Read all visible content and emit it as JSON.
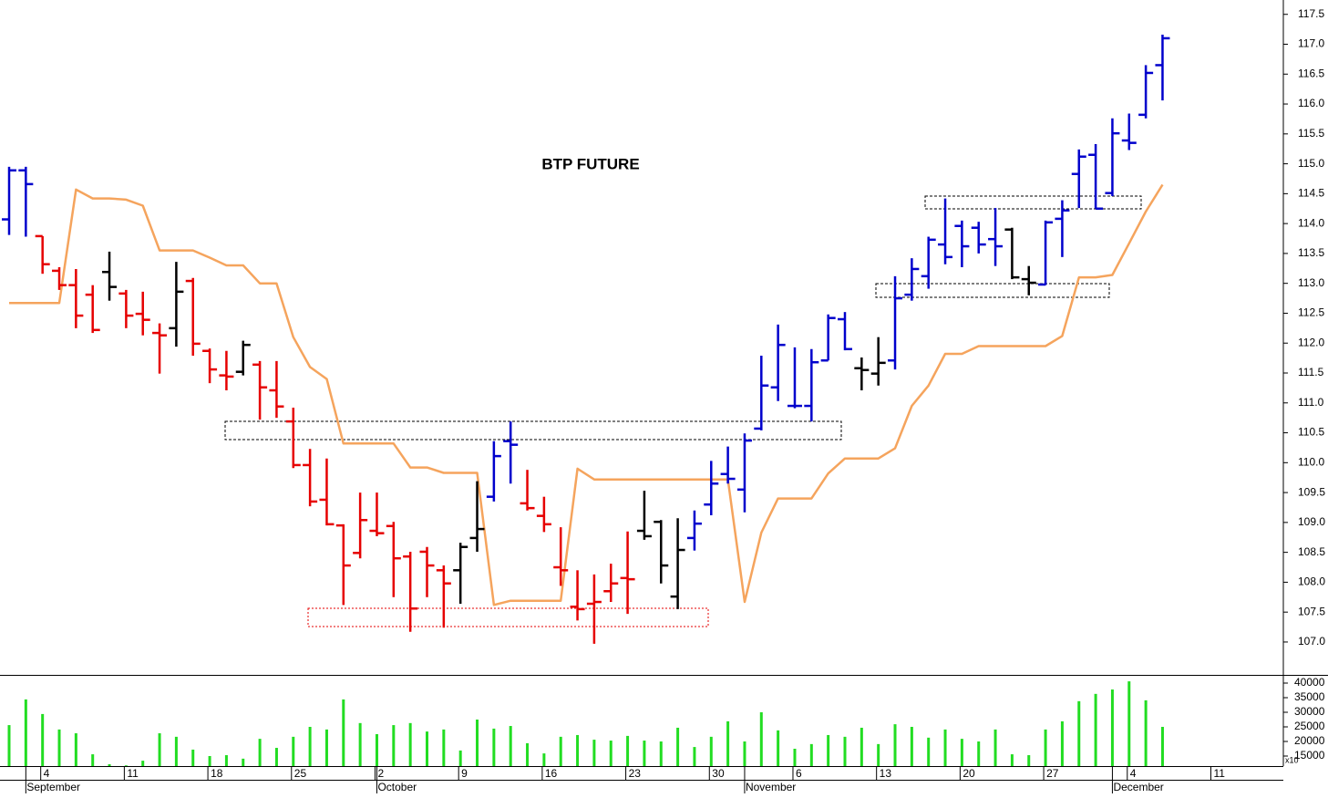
{
  "chart_data": {
    "type": "ohlc",
    "title": "BTP FUTURE",
    "categories": [
      null,
      null,
      "4",
      null,
      null,
      null,
      null,
      "11",
      null,
      null,
      null,
      null,
      "18",
      null,
      null,
      null,
      null,
      "25",
      null,
      null,
      null,
      null,
      "2",
      null,
      null,
      null,
      null,
      "9",
      null,
      null,
      null,
      null,
      "16",
      null,
      null,
      null,
      null,
      "23",
      null,
      null,
      null,
      null,
      "30",
      null,
      null,
      null,
      null,
      "6",
      null,
      null,
      null,
      null,
      "13",
      null,
      null,
      null,
      null,
      "20",
      null,
      null,
      null,
      null,
      "27",
      null,
      null,
      null,
      null,
      "4",
      null,
      null,
      null,
      null,
      "11",
      null,
      null,
      null,
      null
    ],
    "months": [
      null,
      "September",
      null,
      null,
      null,
      null,
      null,
      null,
      null,
      null,
      null,
      null,
      null,
      null,
      null,
      null,
      null,
      null,
      null,
      null,
      null,
      null,
      "October",
      null,
      null,
      null,
      null,
      null,
      null,
      null,
      null,
      null,
      null,
      null,
      null,
      null,
      null,
      null,
      null,
      null,
      null,
      null,
      null,
      null,
      "November",
      null,
      null,
      null,
      null,
      null,
      null,
      null,
      null,
      null,
      null,
      null,
      null,
      null,
      null,
      null,
      null,
      null,
      null,
      null,
      null,
      null,
      "December",
      null,
      null,
      null,
      null,
      null,
      null,
      null,
      null,
      null,
      null
    ],
    "open": [
      114.07,
      114.89,
      113.79,
      113.21,
      112.97,
      112.81,
      113.19,
      112.83,
      112.49,
      112.17,
      112.25,
      113.04,
      111.87,
      111.46,
      111.52,
      111.64,
      111.21,
      110.69,
      109.96,
      109.38,
      108.95,
      108.49,
      108.86,
      108.94,
      108.43,
      108.51,
      108.2,
      108.2,
      108.74,
      109.43,
      110.36,
      109.32,
      109.11,
      108.25,
      107.59,
      107.64,
      107.85,
      108.07,
      108.86,
      109.01,
      107.76,
      108.74,
      109.3,
      109.81,
      109.55,
      110.57,
      111.26,
      110.95,
      110.95,
      111.71,
      112.4,
      111.58,
      111.49,
      111.71,
      112.81,
      113.12,
      113.65,
      113.96,
      113.93,
      113.74,
      113.9,
      113.07,
      112.98,
      114.08,
      114.83,
      115.15,
      114.51,
      115.39,
      115.82,
      116.65,
      null,
      null,
      null,
      null,
      null,
      null,
      null
    ],
    "high": [
      114.95,
      114.95,
      113.79,
      113.27,
      113.24,
      112.97,
      113.53,
      112.89,
      112.86,
      112.33,
      113.36,
      113.09,
      111.91,
      111.87,
      112.04,
      111.7,
      111.7,
      110.92,
      110.23,
      110.07,
      108.97,
      109.5,
      109.5,
      109.01,
      108.51,
      108.59,
      108.28,
      108.66,
      109.69,
      110.36,
      110.69,
      109.88,
      109.43,
      108.92,
      108.2,
      108.13,
      108.31,
      108.85,
      109.53,
      109.04,
      109.07,
      109.2,
      110.03,
      110.27,
      110.49,
      111.79,
      112.31,
      111.93,
      111.9,
      112.48,
      112.52,
      111.76,
      112.1,
      113.12,
      113.42,
      113.78,
      114.42,
      114.05,
      114.03,
      114.26,
      113.93,
      113.29,
      114.05,
      114.39,
      115.24,
      115.33,
      115.76,
      115.84,
      116.65,
      117.16,
      null,
      null,
      null,
      null,
      null,
      null,
      null
    ],
    "low": [
      113.81,
      113.78,
      113.16,
      112.89,
      112.25,
      112.17,
      112.71,
      112.25,
      112.13,
      111.49,
      111.94,
      111.79,
      111.33,
      111.21,
      111.46,
      110.72,
      110.75,
      109.91,
      109.27,
      108.95,
      107.62,
      108.4,
      108.77,
      107.75,
      107.17,
      107.75,
      107.24,
      107.64,
      108.51,
      109.35,
      109.65,
      109.2,
      108.84,
      107.94,
      107.36,
      106.97,
      107.67,
      107.47,
      108.71,
      107.98,
      107.55,
      108.53,
      109.12,
      109.65,
      109.17,
      110.54,
      111.03,
      110.91,
      110.69,
      111.71,
      111.88,
      111.21,
      111.29,
      111.56,
      112.71,
      112.91,
      113.32,
      113.27,
      113.5,
      113.29,
      113.07,
      112.8,
      112.97,
      113.44,
      114.26,
      114.25,
      114.46,
      115.23,
      115.76,
      116.06,
      null,
      null,
      null,
      null,
      null,
      null,
      null
    ],
    "close": [
      114.89,
      114.66,
      113.32,
      112.97,
      112.46,
      112.22,
      112.94,
      112.46,
      112.39,
      112.13,
      112.86,
      111.99,
      111.56,
      111.44,
      111.97,
      111.26,
      110.94,
      109.96,
      109.35,
      108.97,
      108.28,
      109.04,
      108.82,
      108.4,
      107.56,
      108.28,
      107.98,
      108.59,
      108.89,
      110.11,
      110.3,
      109.24,
      108.97,
      108.2,
      107.55,
      107.67,
      107.98,
      108.05,
      108.77,
      108.28,
      108.54,
      108.98,
      109.65,
      109.73,
      110.37,
      111.29,
      111.97,
      110.95,
      111.68,
      112.42,
      111.9,
      111.55,
      111.67,
      112.75,
      113.24,
      113.73,
      113.44,
      113.62,
      113.65,
      113.62,
      113.1,
      113.01,
      114.02,
      114.22,
      115.12,
      114.25,
      115.51,
      115.35,
      116.52,
      117.1,
      null,
      null,
      null,
      null,
      null,
      null,
      null
    ],
    "bar_colors": [
      "#0000cc",
      "#0000cc",
      "#e60000",
      "#e60000",
      "#e60000",
      "#e60000",
      "#000000",
      "#e60000",
      "#e60000",
      "#e60000",
      "#000000",
      "#e60000",
      "#e60000",
      "#e60000",
      "#000000",
      "#e60000",
      "#e60000",
      "#e60000",
      "#e60000",
      "#e60000",
      "#e60000",
      "#e60000",
      "#e60000",
      "#e60000",
      "#e60000",
      "#e60000",
      "#e60000",
      "#000000",
      "#000000",
      "#0000cc",
      "#0000cc",
      "#e60000",
      "#e60000",
      "#e60000",
      "#e60000",
      "#e60000",
      "#e60000",
      "#e60000",
      "#000000",
      "#000000",
      "#000000",
      "#0000cc",
      "#0000cc",
      "#0000cc",
      "#0000cc",
      "#0000cc",
      "#0000cc",
      "#0000cc",
      "#0000cc",
      "#0000cc",
      "#0000cc",
      "#000000",
      "#000000",
      "#0000cc",
      "#0000cc",
      "#0000cc",
      "#0000cc",
      "#0000cc",
      "#0000cc",
      "#0000cc",
      "#000000",
      "#000000",
      "#0000cc",
      "#0000cc",
      "#0000cc",
      "#0000cc",
      "#0000cc",
      "#0000cc",
      "#0000cc",
      "#0000cc",
      null,
      null,
      null,
      null,
      null,
      null,
      null
    ],
    "line": {
      "color": "#f5a45d",
      "values": [
        112.67,
        112.67,
        112.67,
        112.67,
        114.57,
        114.42,
        114.42,
        114.4,
        114.3,
        113.55,
        113.55,
        113.55,
        113.43,
        113.3,
        113.3,
        113.0,
        113.0,
        112.1,
        111.6,
        111.4,
        110.32,
        110.32,
        110.32,
        110.32,
        109.92,
        109.92,
        109.83,
        109.83,
        109.83,
        107.62,
        107.69,
        107.69,
        107.69,
        107.69,
        109.9,
        109.72,
        109.72,
        109.72,
        109.72,
        109.72,
        109.72,
        109.72,
        109.72,
        109.72,
        107.67,
        108.83,
        109.4,
        109.4,
        109.4,
        109.82,
        110.07,
        110.07,
        110.07,
        110.24,
        110.95,
        111.29,
        111.82,
        111.82,
        111.95,
        111.95,
        111.95,
        111.95,
        111.95,
        112.12,
        113.1,
        113.1,
        113.14,
        113.67,
        114.2,
        114.65,
        null,
        null,
        null,
        null,
        null,
        null,
        null
      ]
    },
    "ylim": [
      106.45,
      117.74
    ],
    "yticks": [
      {
        "value": 107,
        "label": "107.0"
      },
      {
        "value": 107.5,
        "label": "107.5"
      },
      {
        "value": 108,
        "label": "108.0"
      },
      {
        "value": 108.5,
        "label": "108.5"
      },
      {
        "value": 109,
        "label": "109.0"
      },
      {
        "value": 109.5,
        "label": "109.5"
      },
      {
        "value": 110,
        "label": "110.0"
      },
      {
        "value": 110.5,
        "label": "110.5"
      },
      {
        "value": 111,
        "label": "111.0"
      },
      {
        "value": 111.5,
        "label": "111.5"
      },
      {
        "value": 112,
        "label": "112.0"
      },
      {
        "value": 112.5,
        "label": "112.5"
      },
      {
        "value": 113,
        "label": "113.0"
      },
      {
        "value": 113.5,
        "label": "113.5"
      },
      {
        "value": 114,
        "label": "114.0"
      },
      {
        "value": 114.5,
        "label": "114.5"
      },
      {
        "value": 115,
        "label": "115.0"
      },
      {
        "value": 115.5,
        "label": "115.5"
      },
      {
        "value": 116,
        "label": "116.0"
      },
      {
        "value": 116.5,
        "label": "116.5"
      },
      {
        "value": 117,
        "label": "117.0"
      },
      {
        "value": 117.5,
        "label": "117.5"
      }
    ],
    "volume": {
      "color": "#22dd22",
      "unit_label": "x10",
      "values": [
        25600,
        34400,
        29400,
        24100,
        22800,
        15600,
        12200,
        11800,
        13400,
        22800,
        21600,
        17200,
        15000,
        15300,
        14100,
        20900,
        17800,
        21600,
        25000,
        24100,
        34400,
        26300,
        22500,
        25600,
        26300,
        23400,
        24100,
        16900,
        27500,
        24400,
        25300,
        19400,
        15900,
        21600,
        22200,
        20600,
        20300,
        21900,
        20300,
        20000,
        24700,
        18100,
        21600,
        26900,
        20000,
        30000,
        23800,
        17500,
        19100,
        22200,
        21600,
        24700,
        19100,
        25900,
        25000,
        21300,
        24100,
        20900,
        20000,
        24100,
        15600,
        15300,
        24100,
        26900,
        33800,
        36300,
        37800,
        40600,
        34100,
        25000,
        null,
        null,
        null,
        null,
        null,
        null,
        null
      ],
      "ylim": [
        11560,
        42500
      ],
      "yticks": [
        15000,
        20000,
        25000,
        30000,
        35000,
        40000
      ]
    }
  }
}
